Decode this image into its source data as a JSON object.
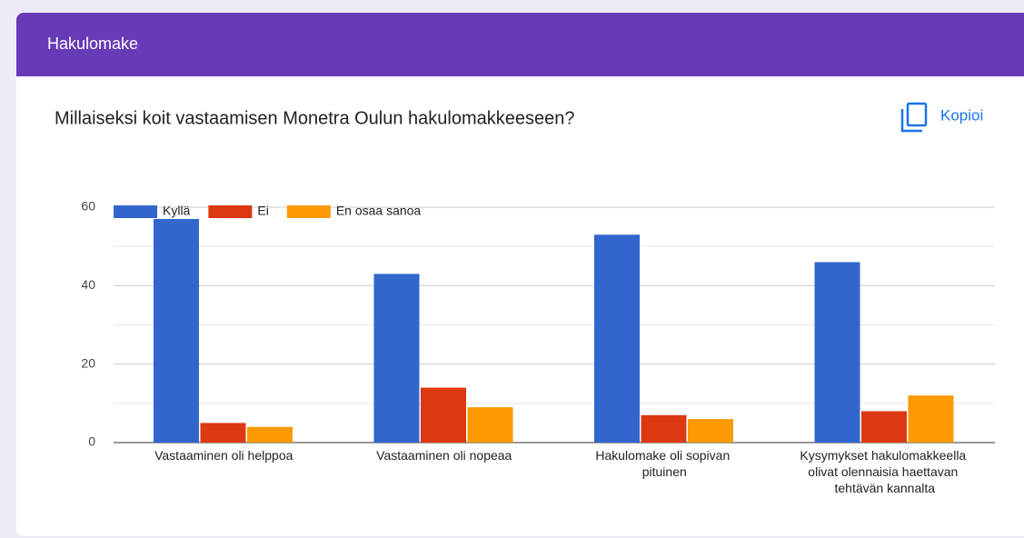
{
  "header": {
    "title": "Hakulomake"
  },
  "copy_button": {
    "label": "Kopioi"
  },
  "chart_data": {
    "type": "bar",
    "title": "Millaiseksi koit vastaamisen Monetra Oulun hakulomakkeeseen?",
    "categories": [
      "Vastaaminen oli helppoa",
      "Vastaaminen oli nopeaa",
      "Hakulomake oli sopivan pituinen",
      "Kysymykset hakulomakkeella olivat olennaisia haettavan tehtävän kannalta"
    ],
    "series": [
      {
        "name": "Kyllä",
        "color": "#3366cc",
        "values": [
          57,
          43,
          53,
          46
        ]
      },
      {
        "name": "Ei",
        "color": "#dc3912",
        "values": [
          5,
          14,
          7,
          8
        ]
      },
      {
        "name": "En osaa sanoa",
        "color": "#ff9900",
        "values": [
          4,
          9,
          6,
          12
        ]
      }
    ],
    "ylim": [
      0,
      60
    ],
    "yticks": [
      0,
      20,
      40,
      60
    ],
    "grid": true,
    "legend": "top-left"
  }
}
